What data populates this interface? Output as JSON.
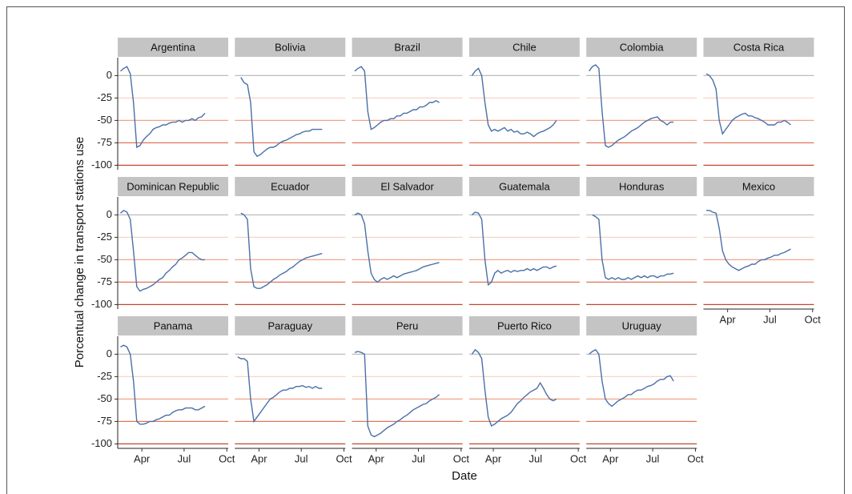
{
  "chart_data": {
    "type": "line",
    "xlabel": "Date",
    "ylabel": "Porcentual change in transport stations use",
    "x": [
      46,
      53,
      60,
      67,
      74,
      81,
      88,
      95,
      102,
      109,
      116,
      123,
      130,
      137,
      144,
      151,
      158,
      165,
      172,
      179,
      186,
      193,
      200,
      207,
      214,
      221,
      228
    ],
    "xlim": [
      40,
      278
    ],
    "xticks": [
      {
        "value": 92,
        "label": "Apr"
      },
      {
        "value": 183,
        "label": "Jul"
      },
      {
        "value": 275,
        "label": "Oct"
      }
    ],
    "ylim": [
      -105,
      20
    ],
    "yticks": [
      0,
      -25,
      -50,
      -75,
      -100
    ],
    "grid": true,
    "grid_colors": [
      "#bdbdbd",
      "#f6d5c8",
      "#f0a58a",
      "#e0775a",
      "#c0492f"
    ],
    "columns": 6,
    "series": [
      {
        "name": "Argentina",
        "color": "#4a70a8",
        "values": [
          5,
          8,
          10,
          2,
          -30,
          -80,
          -78,
          -72,
          -68,
          -65,
          -60,
          -58,
          -57,
          -55,
          -55,
          -53,
          -52,
          -52,
          -50,
          -52,
          -50,
          -50,
          -48,
          -50,
          -47,
          -46,
          -42
        ]
      },
      {
        "name": "Bolivia",
        "color": "#4a70a8",
        "values": [
          null,
          -2,
          -8,
          -10,
          -30,
          -85,
          -90,
          -88,
          -85,
          -82,
          -80,
          -80,
          -78,
          -75,
          -73,
          -72,
          -70,
          -68,
          -66,
          -65,
          -63,
          -62,
          -62,
          -60,
          -60,
          -60,
          -60
        ]
      },
      {
        "name": "Brazil",
        "color": "#4a70a8",
        "values": [
          5,
          8,
          10,
          5,
          -40,
          -60,
          -58,
          -55,
          -52,
          -50,
          -50,
          -48,
          -48,
          -45,
          -45,
          -42,
          -42,
          -40,
          -38,
          -38,
          -35,
          -35,
          -33,
          -30,
          -30,
          -28,
          -30
        ]
      },
      {
        "name": "Chile",
        "color": "#4a70a8",
        "values": [
          0,
          5,
          8,
          0,
          -30,
          -55,
          -62,
          -60,
          -62,
          -60,
          -58,
          -62,
          -60,
          -63,
          -62,
          -65,
          -65,
          -63,
          -65,
          -68,
          -65,
          -63,
          -62,
          -60,
          -58,
          -55,
          -50
        ]
      },
      {
        "name": "Colombia",
        "color": "#4a70a8",
        "values": [
          5,
          10,
          12,
          8,
          -40,
          -78,
          -80,
          -78,
          -75,
          -72,
          -70,
          -68,
          -65,
          -62,
          -60,
          -58,
          -55,
          -52,
          -50,
          -48,
          -47,
          -46,
          -50,
          -52,
          -55,
          -52,
          -52
        ]
      },
      {
        "name": "Costa Rica",
        "color": "#4a70a8",
        "values": [
          2,
          0,
          -5,
          -15,
          -50,
          -65,
          -60,
          -55,
          -50,
          -47,
          -45,
          -43,
          -42,
          -45,
          -45,
          -47,
          -48,
          -50,
          -52,
          -55,
          -55,
          -55,
          -52,
          -52,
          -50,
          -52,
          -55
        ]
      },
      {
        "name": "Dominican Republic",
        "color": "#4a70a8",
        "values": [
          2,
          5,
          3,
          -5,
          -40,
          -80,
          -85,
          -83,
          -82,
          -80,
          -78,
          -75,
          -72,
          -70,
          -65,
          -62,
          -58,
          -55,
          -50,
          -48,
          -45,
          -42,
          -42,
          -45,
          -48,
          -50,
          -50
        ]
      },
      {
        "name": "Ecuador",
        "color": "#4a70a8",
        "values": [
          null,
          2,
          0,
          -5,
          -60,
          -80,
          -82,
          -82,
          -80,
          -78,
          -75,
          -72,
          -70,
          -67,
          -65,
          -63,
          -60,
          -58,
          -55,
          -52,
          -50,
          -48,
          -47,
          -46,
          -45,
          -44,
          -43
        ]
      },
      {
        "name": "El Salvador",
        "color": "#4a70a8",
        "values": [
          0,
          2,
          0,
          -10,
          -40,
          -65,
          -72,
          -75,
          -72,
          -70,
          -72,
          -70,
          -68,
          -70,
          -68,
          -66,
          -65,
          -64,
          -63,
          -62,
          -60,
          -58,
          -57,
          -56,
          -55,
          -54,
          -53
        ]
      },
      {
        "name": "Guatemala",
        "color": "#4a70a8",
        "values": [
          0,
          3,
          2,
          -5,
          -50,
          -78,
          -75,
          -65,
          -62,
          -65,
          -63,
          -62,
          -64,
          -62,
          -63,
          -62,
          -62,
          -60,
          -62,
          -60,
          -62,
          -60,
          -58,
          -58,
          -60,
          -58,
          -57
        ]
      },
      {
        "name": "Honduras",
        "color": "#4a70a8",
        "values": [
          null,
          0,
          -2,
          -5,
          -50,
          -70,
          -72,
          -70,
          -72,
          -70,
          -72,
          -72,
          -70,
          -72,
          -70,
          -68,
          -70,
          -68,
          -70,
          -68,
          -68,
          -70,
          -68,
          -68,
          -66,
          -66,
          -65
        ]
      },
      {
        "name": "Mexico",
        "color": "#4a70a8",
        "values": [
          5,
          5,
          3,
          2,
          -15,
          -40,
          -50,
          -55,
          -58,
          -60,
          -62,
          -60,
          -58,
          -57,
          -55,
          -55,
          -52,
          -50,
          -50,
          -48,
          -47,
          -45,
          -45,
          -43,
          -42,
          -40,
          -38
        ]
      },
      {
        "name": "Panama",
        "color": "#4a70a8",
        "values": [
          8,
          10,
          8,
          0,
          -30,
          -75,
          -78,
          -78,
          -77,
          -75,
          -75,
          -73,
          -72,
          -70,
          -68,
          -68,
          -65,
          -63,
          -62,
          -62,
          -60,
          -60,
          -60,
          -62,
          -62,
          -60,
          -58
        ]
      },
      {
        "name": "Paraguay",
        "color": "#4a70a8",
        "values": [
          -3,
          -5,
          -5,
          -8,
          -50,
          -75,
          -70,
          -65,
          -60,
          -55,
          -50,
          -48,
          -45,
          -42,
          -40,
          -40,
          -38,
          -38,
          -36,
          -36,
          -35,
          -37,
          -36,
          -38,
          -36,
          -38,
          -38
        ]
      },
      {
        "name": "Peru",
        "color": "#4a70a8",
        "values": [
          2,
          3,
          2,
          0,
          -80,
          -90,
          -92,
          -90,
          -88,
          -85,
          -82,
          -80,
          -78,
          -75,
          -73,
          -70,
          -68,
          -65,
          -62,
          -60,
          -58,
          -56,
          -55,
          -52,
          -50,
          -48,
          -45
        ]
      },
      {
        "name": "Puerto Rico",
        "color": "#4a70a8",
        "values": [
          0,
          5,
          2,
          -5,
          -40,
          -70,
          -80,
          -78,
          -75,
          -72,
          -70,
          -68,
          -65,
          -60,
          -55,
          -52,
          -48,
          -45,
          -42,
          -40,
          -38,
          -32,
          -38,
          -45,
          -50,
          -52,
          -50
        ]
      },
      {
        "name": "Uruguay",
        "color": "#4a70a8",
        "values": [
          0,
          3,
          5,
          0,
          -30,
          -50,
          -55,
          -58,
          -55,
          -52,
          -50,
          -48,
          -45,
          -45,
          -42,
          -40,
          -40,
          -38,
          -36,
          -35,
          -33,
          -30,
          -28,
          -28,
          -25,
          -24,
          -30
        ]
      }
    ]
  }
}
